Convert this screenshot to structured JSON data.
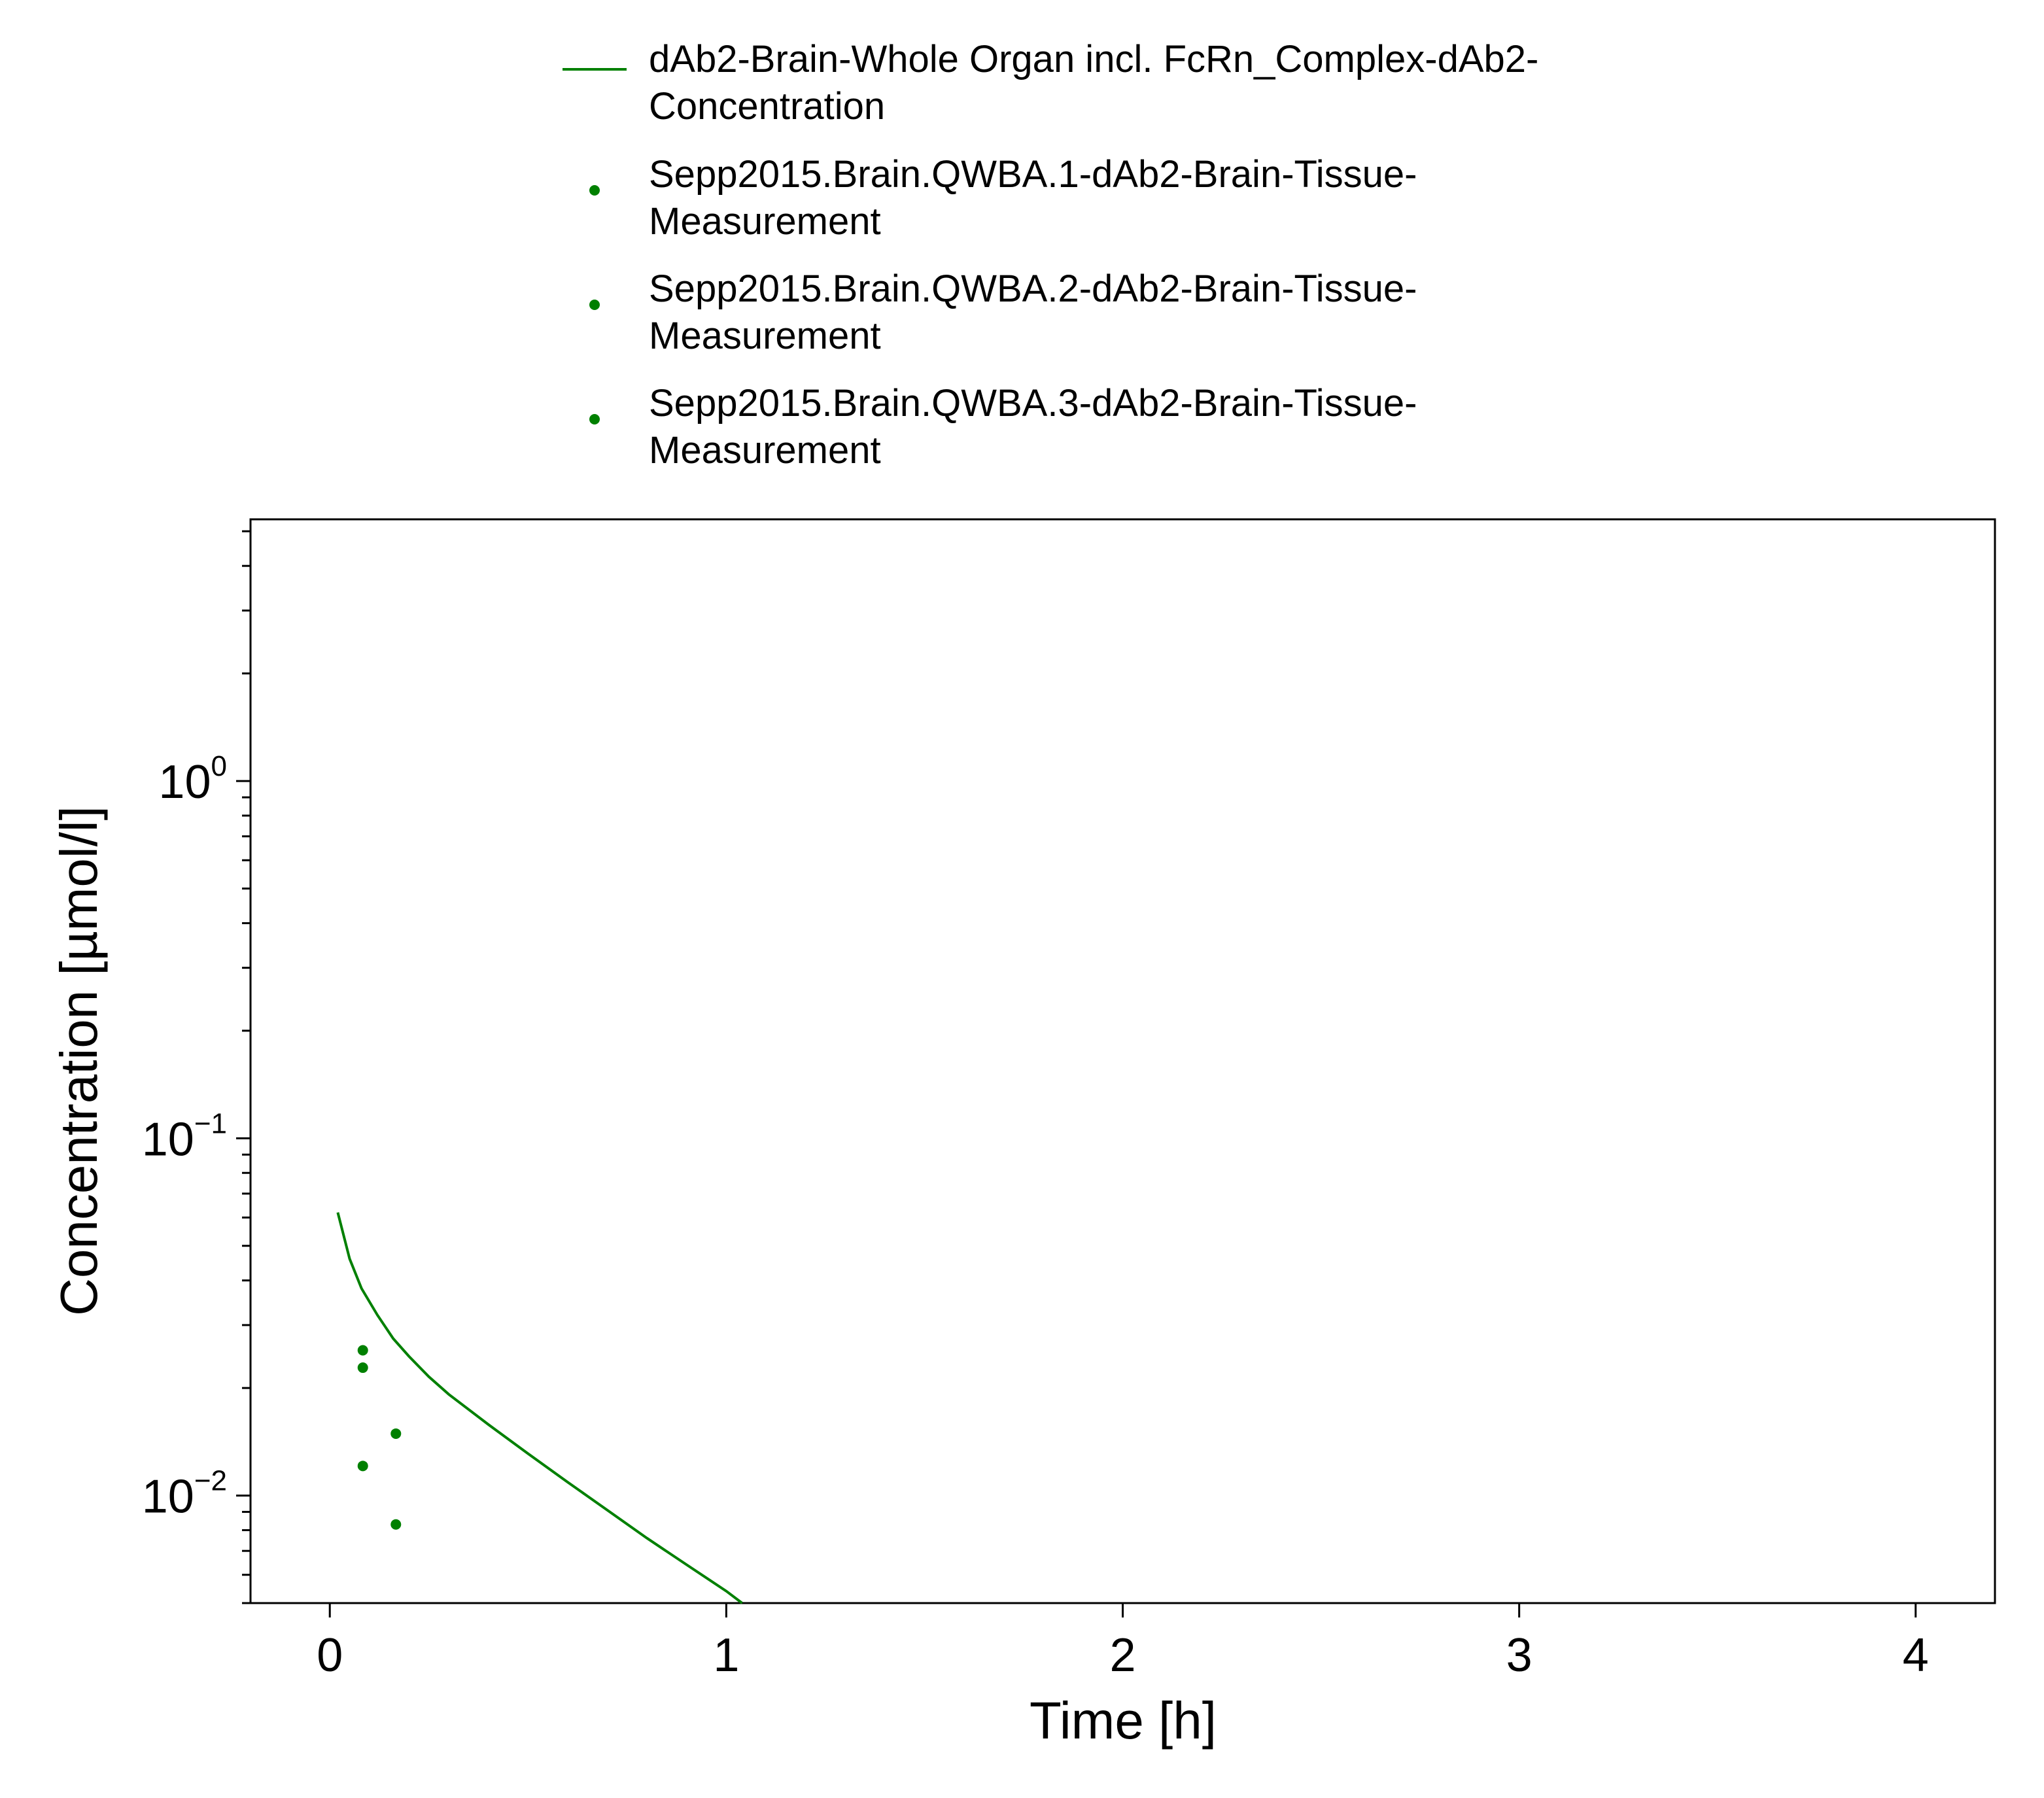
{
  "chart_data": {
    "type": "line",
    "title": "",
    "xlabel": "Time [h]",
    "ylabel": "Concentration [µmol/l]",
    "xlim": [
      -0.2,
      4.2
    ],
    "ylim": [
      0.005,
      5.4
    ],
    "yscale": "log",
    "grid": false,
    "legend_position": "top",
    "x_ticks": [
      0,
      1,
      2,
      3,
      4
    ],
    "x_tick_labels": [
      "0",
      "1",
      "2",
      "3",
      "4"
    ],
    "y_ticks": [
      {
        "value": 1,
        "base": "10",
        "exp": "0"
      },
      {
        "value": 0.1,
        "base": "10",
        "exp": "−1"
      },
      {
        "value": 0.01,
        "base": "10",
        "exp": "−2"
      }
    ],
    "series": [
      {
        "name_lines": [
          "dAb2-Brain-Whole Organ incl. FcRn_Complex-dAb2-",
          "Concentration"
        ],
        "type": "line",
        "color": "#008000",
        "x": [
          0.02,
          0.05,
          0.08,
          0.12,
          0.16,
          0.2,
          0.25,
          0.3,
          0.4,
          0.5,
          0.6,
          0.7,
          0.8,
          0.9,
          1.0,
          1.04
        ],
        "y": [
          0.062,
          0.046,
          0.038,
          0.032,
          0.0275,
          0.0245,
          0.0215,
          0.0192,
          0.0158,
          0.0131,
          0.0109,
          0.0091,
          0.0076,
          0.0064,
          0.0054,
          0.005
        ]
      },
      {
        "name_lines": [
          "Sepp2015.Brain.QWBA.1-dAb2-Brain-Tissue-",
          "Measurement"
        ],
        "type": "scatter",
        "color": "#008000",
        "x": [
          0.0833,
          0.1667
        ],
        "y": [
          0.0255,
          0.0149
        ]
      },
      {
        "name_lines": [
          "Sepp2015.Brain.QWBA.2-dAb2-Brain-Tissue-",
          "Measurement"
        ],
        "type": "scatter",
        "color": "#008000",
        "x": [
          0.0833,
          0.1667
        ],
        "y": [
          0.0228,
          0.0083
        ]
      },
      {
        "name_lines": [
          "Sepp2015.Brain.QWBA.3-dAb2-Brain-Tissue-",
          "Measurement"
        ],
        "type": "scatter",
        "color": "#008000",
        "x": [
          0.0833
        ],
        "y": [
          0.0121
        ]
      }
    ]
  }
}
